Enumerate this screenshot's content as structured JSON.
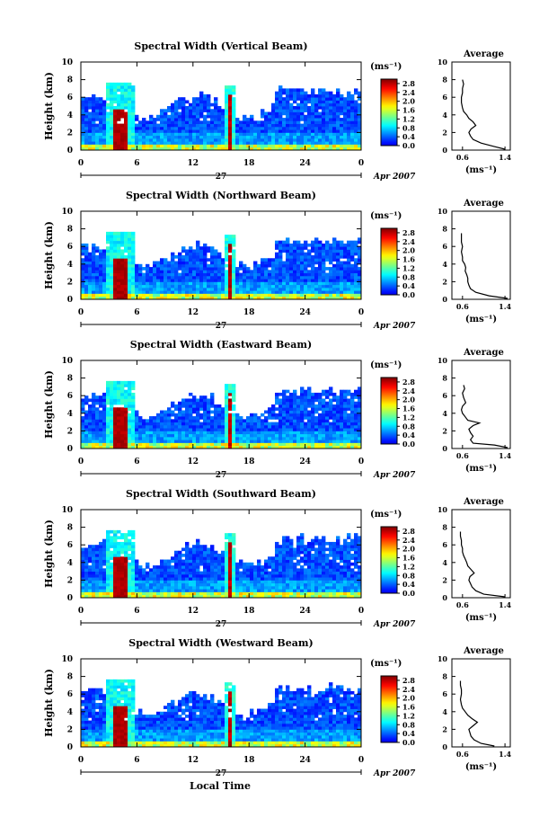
{
  "chart_data": {
    "type": "heatmap",
    "panels": [
      {
        "title": "Spectral Width (Vertical Beam)",
        "ylabel": "Height (km)",
        "yticks": [
          "0",
          "2",
          "4",
          "6",
          "8",
          "10"
        ],
        "ylim": [
          0,
          10
        ],
        "xticks": [
          "0",
          "6",
          "12",
          "18",
          "24",
          "0"
        ],
        "xlim": [
          0,
          30
        ],
        "date_day": "27",
        "date_month_year": "Apr 2007",
        "colorbar_unit": "(ms⁻¹)",
        "colorbar_ticks": [
          "0.0",
          "0.4",
          "0.8",
          "1.2",
          "1.6",
          "2.0",
          "2.4",
          "2.8"
        ],
        "colorbar_range": [
          0.0,
          3.0
        ],
        "avg_title": "Average",
        "avg_xlabel": "(ms⁻¹)",
        "avg_xticks": [
          "0.6",
          "1.4"
        ],
        "avg_xlim": [
          0.4,
          1.5
        ],
        "avg_profile": [
          [
            1.4,
            0.1
          ],
          [
            1.2,
            0.4
          ],
          [
            0.95,
            0.8
          ],
          [
            0.8,
            1.2
          ],
          [
            0.75,
            1.6
          ],
          [
            0.72,
            2.0
          ],
          [
            0.76,
            2.4
          ],
          [
            0.85,
            2.8
          ],
          [
            0.8,
            3.2
          ],
          [
            0.72,
            3.6
          ],
          [
            0.68,
            4.0
          ],
          [
            0.62,
            4.4
          ],
          [
            0.6,
            4.8
          ],
          [
            0.58,
            5.4
          ],
          [
            0.58,
            6.0
          ],
          [
            0.6,
            6.5
          ],
          [
            0.6,
            7.0
          ],
          [
            0.62,
            7.5
          ],
          [
            0.6,
            8.0
          ]
        ]
      },
      {
        "title": "Spectral Width (Northward Beam)",
        "ylabel": "Height (km)",
        "yticks": [
          "0",
          "2",
          "4",
          "6",
          "8",
          "10"
        ],
        "ylim": [
          0,
          10
        ],
        "xticks": [
          "0",
          "6",
          "12",
          "18",
          "24",
          "0"
        ],
        "xlim": [
          0,
          30
        ],
        "date_day": "27",
        "date_month_year": "Apr 2007",
        "colorbar_unit": "(ms⁻¹)",
        "colorbar_ticks": [
          "0.0",
          "0.4",
          "0.8",
          "1.2",
          "1.6",
          "2.0",
          "2.4",
          "2.8"
        ],
        "colorbar_range": [
          0.0,
          3.0
        ],
        "avg_title": "Average",
        "avg_xlabel": "(ms⁻¹)",
        "avg_xticks": [
          "0.6",
          "1.4"
        ],
        "avg_xlim": [
          0.4,
          1.5
        ],
        "avg_profile": [
          [
            1.45,
            0.1
          ],
          [
            1.1,
            0.4
          ],
          [
            0.85,
            0.8
          ],
          [
            0.75,
            1.2
          ],
          [
            0.72,
            1.6
          ],
          [
            0.7,
            2.0
          ],
          [
            0.7,
            2.4
          ],
          [
            0.68,
            2.8
          ],
          [
            0.65,
            3.2
          ],
          [
            0.66,
            3.6
          ],
          [
            0.64,
            4.0
          ],
          [
            0.6,
            4.4
          ],
          [
            0.6,
            4.8
          ],
          [
            0.58,
            5.4
          ],
          [
            0.6,
            6.0
          ],
          [
            0.58,
            6.5
          ],
          [
            0.58,
            7.0
          ],
          [
            0.58,
            7.5
          ]
        ]
      },
      {
        "title": "Spectral Width (Eastward Beam)",
        "ylabel": "Height (km)",
        "yticks": [
          "0",
          "2",
          "4",
          "6",
          "8",
          "10"
        ],
        "ylim": [
          0,
          10
        ],
        "xticks": [
          "0",
          "6",
          "12",
          "18",
          "24",
          "0"
        ],
        "xlim": [
          0,
          30
        ],
        "date_day": "27",
        "date_month_year": "Apr 2007",
        "colorbar_unit": "(ms⁻¹)",
        "colorbar_ticks": [
          "0.0",
          "0.4",
          "0.8",
          "1.2",
          "1.6",
          "2.0",
          "2.4",
          "2.8"
        ],
        "colorbar_range": [
          0.0,
          3.0
        ],
        "avg_title": "Average",
        "avg_xlabel": "(ms⁻¹)",
        "avg_xticks": [
          "0.6",
          "1.4"
        ],
        "avg_xlim": [
          0.4,
          1.5
        ],
        "avg_profile": [
          [
            1.45,
            0.1
          ],
          [
            1.2,
            0.4
          ],
          [
            0.8,
            0.6
          ],
          [
            0.75,
            1.0
          ],
          [
            0.8,
            1.4
          ],
          [
            0.75,
            1.8
          ],
          [
            0.72,
            2.2
          ],
          [
            0.8,
            2.6
          ],
          [
            0.92,
            2.9
          ],
          [
            0.7,
            3.2
          ],
          [
            0.65,
            3.6
          ],
          [
            0.6,
            4.0
          ],
          [
            0.58,
            4.4
          ],
          [
            0.6,
            4.8
          ],
          [
            0.66,
            5.2
          ],
          [
            0.62,
            5.8
          ],
          [
            0.6,
            6.3
          ],
          [
            0.64,
            6.8
          ],
          [
            0.62,
            7.2
          ]
        ]
      },
      {
        "title": "Spectral Width (Southward Beam)",
        "ylabel": "Height (km)",
        "yticks": [
          "0",
          "2",
          "4",
          "6",
          "8",
          "10"
        ],
        "ylim": [
          0,
          10
        ],
        "xticks": [
          "0",
          "6",
          "12",
          "18",
          "24",
          "0"
        ],
        "xlim": [
          0,
          30
        ],
        "date_day": "27",
        "date_month_year": "Apr 2007",
        "colorbar_unit": "(ms⁻¹)",
        "colorbar_ticks": [
          "0.0",
          "0.4",
          "0.8",
          "1.2",
          "1.6",
          "2.0",
          "2.4",
          "2.8"
        ],
        "colorbar_range": [
          0.0,
          3.0
        ],
        "avg_title": "Average",
        "avg_xlabel": "(ms⁻¹)",
        "avg_xticks": [
          "0.6",
          "1.4"
        ],
        "avg_xlim": [
          0.4,
          1.5
        ],
        "avg_profile": [
          [
            1.4,
            0.1
          ],
          [
            1.0,
            0.4
          ],
          [
            0.85,
            0.8
          ],
          [
            0.78,
            1.2
          ],
          [
            0.75,
            1.6
          ],
          [
            0.72,
            2.0
          ],
          [
            0.74,
            2.4
          ],
          [
            0.82,
            2.8
          ],
          [
            0.76,
            3.2
          ],
          [
            0.7,
            3.6
          ],
          [
            0.68,
            4.0
          ],
          [
            0.65,
            4.4
          ],
          [
            0.62,
            4.8
          ],
          [
            0.6,
            5.2
          ],
          [
            0.6,
            5.6
          ],
          [
            0.58,
            6.0
          ],
          [
            0.58,
            6.5
          ],
          [
            0.56,
            7.0
          ],
          [
            0.56,
            7.5
          ]
        ]
      },
      {
        "title": "Spectral Width (Westward Beam)",
        "ylabel": "Height (km)",
        "yticks": [
          "0",
          "2",
          "4",
          "6",
          "8",
          "10"
        ],
        "ylim": [
          0,
          10
        ],
        "xticks": [
          "0",
          "6",
          "12",
          "18",
          "24",
          "0"
        ],
        "xlim": [
          0,
          30
        ],
        "date_day": "27",
        "date_month_year": "Apr 2007",
        "colorbar_unit": "(ms⁻¹)",
        "colorbar_ticks": [
          "0.0",
          "0.4",
          "0.8",
          "1.2",
          "1.6",
          "2.0",
          "2.4",
          "2.8"
        ],
        "colorbar_range": [
          0.0,
          3.0
        ],
        "avg_title": "Average",
        "avg_xlabel": "(ms⁻¹)",
        "avg_xticks": [
          "0.6",
          "1.4"
        ],
        "avg_xlim": [
          0.4,
          1.5
        ],
        "avg_profile": [
          [
            1.2,
            0.1
          ],
          [
            0.95,
            0.4
          ],
          [
            0.82,
            0.8
          ],
          [
            0.76,
            1.2
          ],
          [
            0.74,
            1.6
          ],
          [
            0.72,
            2.0
          ],
          [
            0.8,
            2.4
          ],
          [
            0.88,
            2.8
          ],
          [
            0.78,
            3.2
          ],
          [
            0.7,
            3.6
          ],
          [
            0.65,
            4.0
          ],
          [
            0.6,
            4.4
          ],
          [
            0.58,
            4.8
          ],
          [
            0.56,
            5.4
          ],
          [
            0.58,
            6.0
          ],
          [
            0.58,
            6.5
          ],
          [
            0.56,
            7.0
          ],
          [
            0.56,
            7.5
          ]
        ]
      }
    ],
    "xlabel": "Local Time"
  }
}
